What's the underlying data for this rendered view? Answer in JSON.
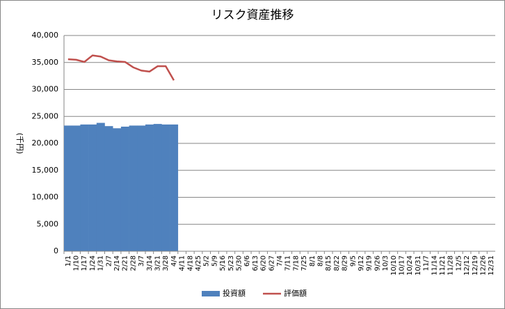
{
  "chart_data": {
    "type": "bar-line",
    "title": "リスク資産推移",
    "y_label": "(千円)",
    "categories": [
      "1/1",
      "1/10",
      "1/17",
      "1/24",
      "1/31",
      "2/7",
      "2/14",
      "2/21",
      "2/28",
      "3/7",
      "3/14",
      "3/21",
      "3/28",
      "4/4",
      "4/11",
      "4/18",
      "4/25",
      "5/2",
      "5/9",
      "5/16",
      "5/23",
      "5/30",
      "6/6",
      "6/13",
      "6/20",
      "6/27",
      "7/4",
      "7/11",
      "7/18",
      "7/25",
      "8/1",
      "8/8",
      "8/15",
      "8/22",
      "8/29",
      "9/5",
      "9/12",
      "9/19",
      "9/26",
      "10/3",
      "10/10",
      "10/17",
      "10/24",
      "10/31",
      "11/7",
      "11/14",
      "11/21",
      "11/28",
      "12/5",
      "12/12",
      "12/19",
      "12/26",
      "12/31"
    ],
    "series": [
      {
        "name": "投資額",
        "kind": "bar",
        "color": "#4f81bd",
        "values": [
          23300,
          23300,
          23500,
          23500,
          23800,
          23200,
          22800,
          23100,
          23300,
          23300,
          23500,
          23600,
          23500,
          23500,
          null,
          null,
          null,
          null,
          null,
          null,
          null,
          null,
          null,
          null,
          null,
          null,
          null,
          null,
          null,
          null,
          null,
          null,
          null,
          null,
          null,
          null,
          null,
          null,
          null,
          null,
          null,
          null,
          null,
          null,
          null,
          null,
          null,
          null,
          null,
          null,
          null,
          null,
          null
        ]
      },
      {
        "name": "評価額",
        "kind": "line",
        "color": "#c0504d",
        "values": [
          35600,
          35500,
          35100,
          36300,
          36100,
          35400,
          35200,
          35100,
          34100,
          33500,
          33300,
          34300,
          34300,
          31700,
          null,
          null,
          null,
          null,
          null,
          null,
          null,
          null,
          null,
          null,
          null,
          null,
          null,
          null,
          null,
          null,
          null,
          null,
          null,
          null,
          null,
          null,
          null,
          null,
          null,
          null,
          null,
          null,
          null,
          null,
          null,
          null,
          null,
          null,
          null,
          null,
          null,
          null,
          null
        ]
      }
    ],
    "ylim": [
      0,
      40000
    ],
    "yticks": [
      0,
      {
        "value": 5000,
        "label": "5,000"
      },
      {
        "value": 10000,
        "label": "10,000"
      },
      {
        "value": 15000,
        "label": "15,000"
      },
      {
        "value": 20000,
        "label": "20,000"
      },
      {
        "value": 25000,
        "label": "25,000"
      },
      {
        "value": 30000,
        "label": "30,000"
      },
      {
        "value": 35000,
        "label": "35,000"
      },
      {
        "value": 40000,
        "label": "40,000"
      }
    ],
    "grid": true,
    "legend": "bottom"
  }
}
